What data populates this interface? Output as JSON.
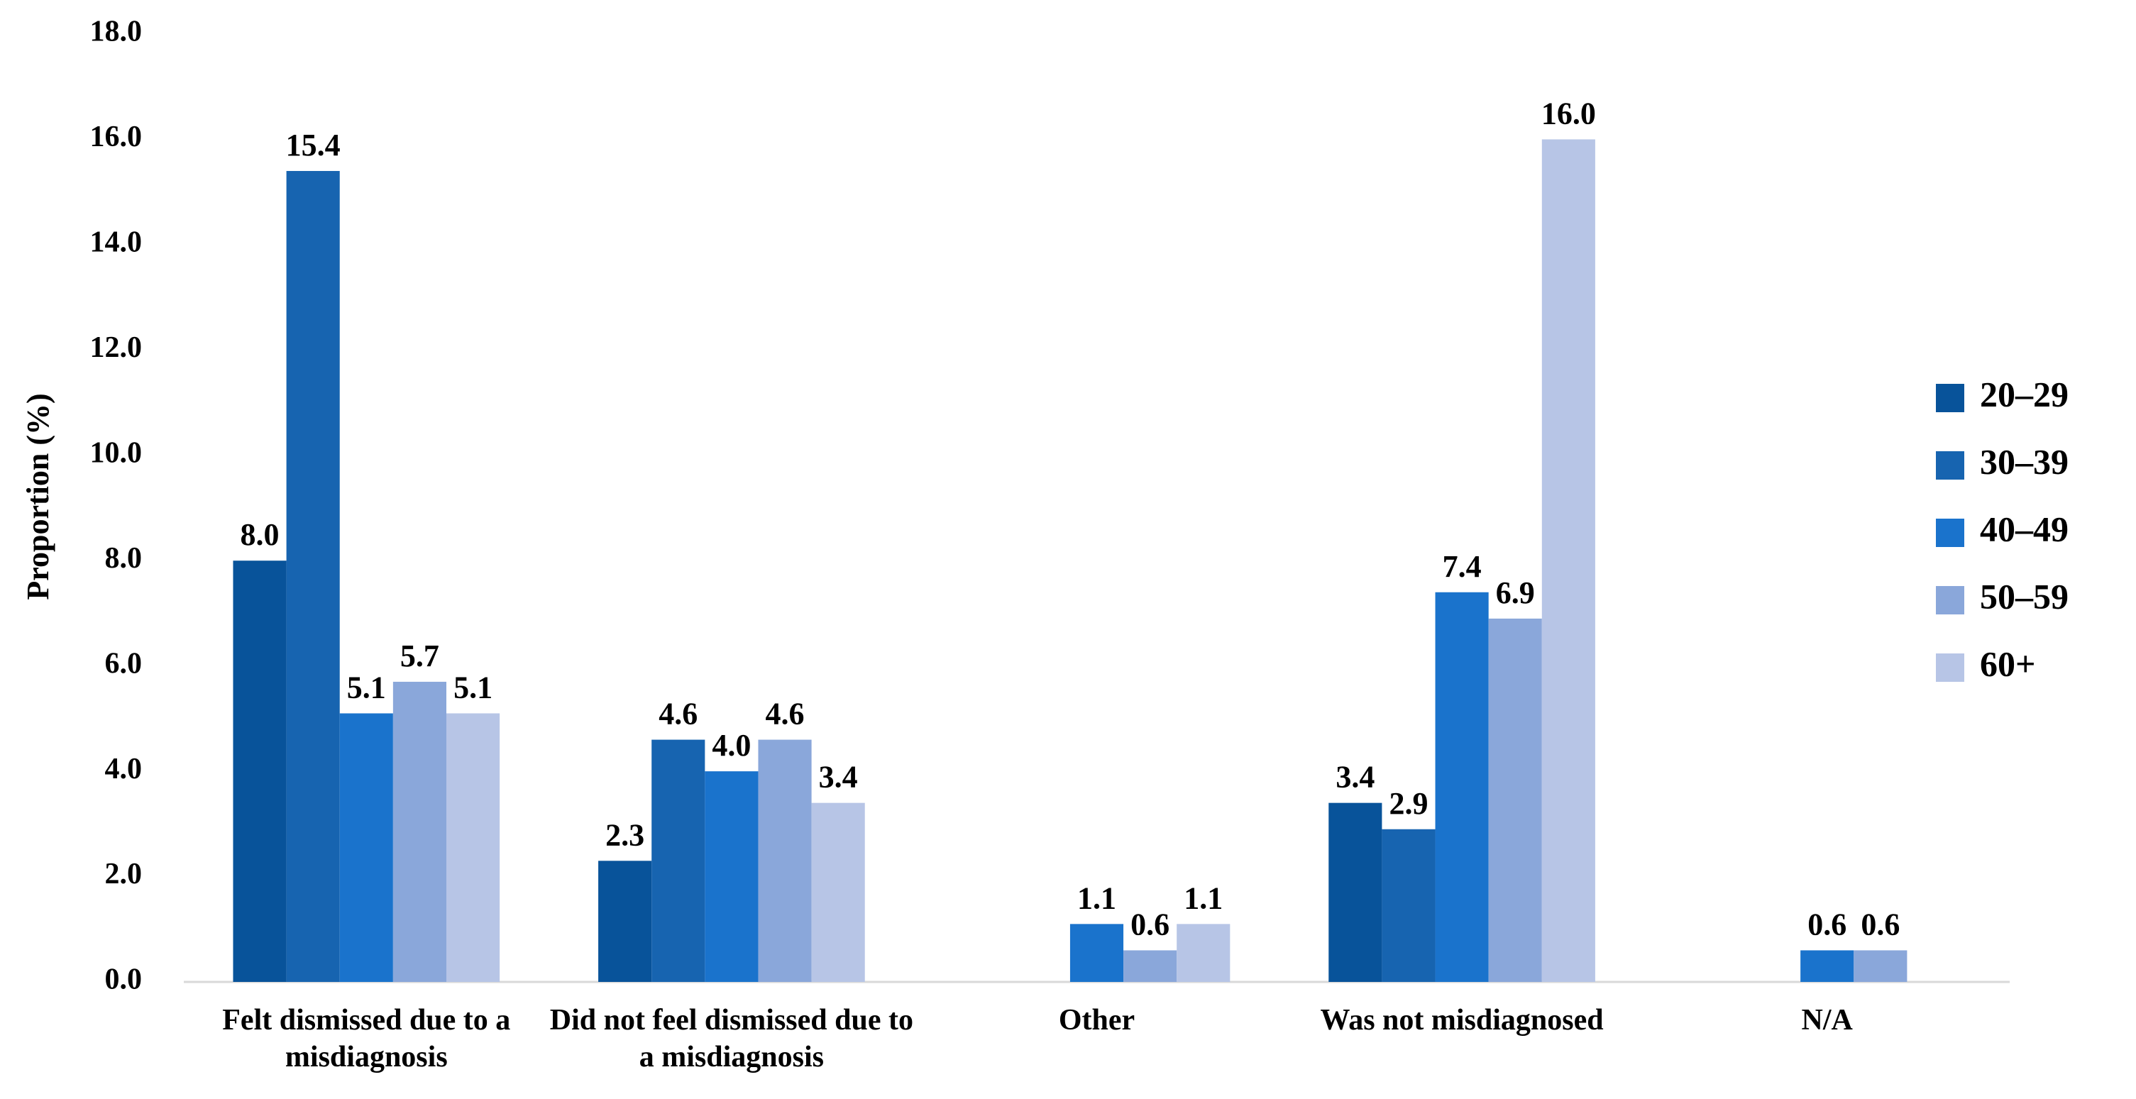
{
  "chart_data": {
    "type": "bar",
    "y_label": "Proportion (%)",
    "categories": [
      "Felt dismissed due to a misdiagnosis",
      "Did not feel dismissed due to a misdiagnosis",
      "Other",
      "Was not misdiagnosed",
      "N/A"
    ],
    "series": [
      {
        "name": "20–29",
        "color": "#08539a",
        "values": [
          8.0,
          2.3,
          null,
          3.4,
          null
        ],
        "value_labels": [
          "8.0",
          "2.3",
          null,
          "3.4",
          null
        ]
      },
      {
        "name": "30–39",
        "color": "#1764b0",
        "values": [
          15.4,
          4.6,
          null,
          2.9,
          null
        ],
        "value_labels": [
          "15.4",
          "4.6",
          null,
          "2.9",
          null
        ]
      },
      {
        "name": "40–49",
        "color": "#1a73cc",
        "values": [
          5.1,
          4.0,
          1.1,
          7.4,
          0.6
        ],
        "value_labels": [
          "5.1",
          "4.0",
          "1.1",
          "7.4",
          "0.6"
        ]
      },
      {
        "name": "50–59",
        "color": "#8aa7da",
        "values": [
          5.7,
          4.6,
          0.6,
          6.9,
          0.6
        ],
        "value_labels": [
          "5.7",
          "4.6",
          "0.6",
          "6.9",
          "0.6"
        ]
      },
      {
        "name": "60+",
        "color": "#b7c5e6",
        "values": [
          5.1,
          3.4,
          1.1,
          16.0,
          null
        ],
        "value_labels": [
          "5.1",
          "3.4",
          "1.1",
          "16.0",
          null
        ]
      }
    ],
    "ylim": [
      0,
      18
    ],
    "yticks": [
      {
        "value": 0,
        "label": "0.0"
      },
      {
        "value": 2,
        "label": "2.0"
      },
      {
        "value": 4,
        "label": "4.0"
      },
      {
        "value": 6,
        "label": "6.0"
      },
      {
        "value": 8,
        "label": "8.0"
      },
      {
        "value": 10,
        "label": "10.0"
      },
      {
        "value": 12,
        "label": "12.0"
      },
      {
        "value": 14,
        "label": "14.0"
      },
      {
        "value": 16,
        "label": "16.0"
      },
      {
        "value": 18,
        "label": "18.0"
      }
    ],
    "legend": "right"
  }
}
